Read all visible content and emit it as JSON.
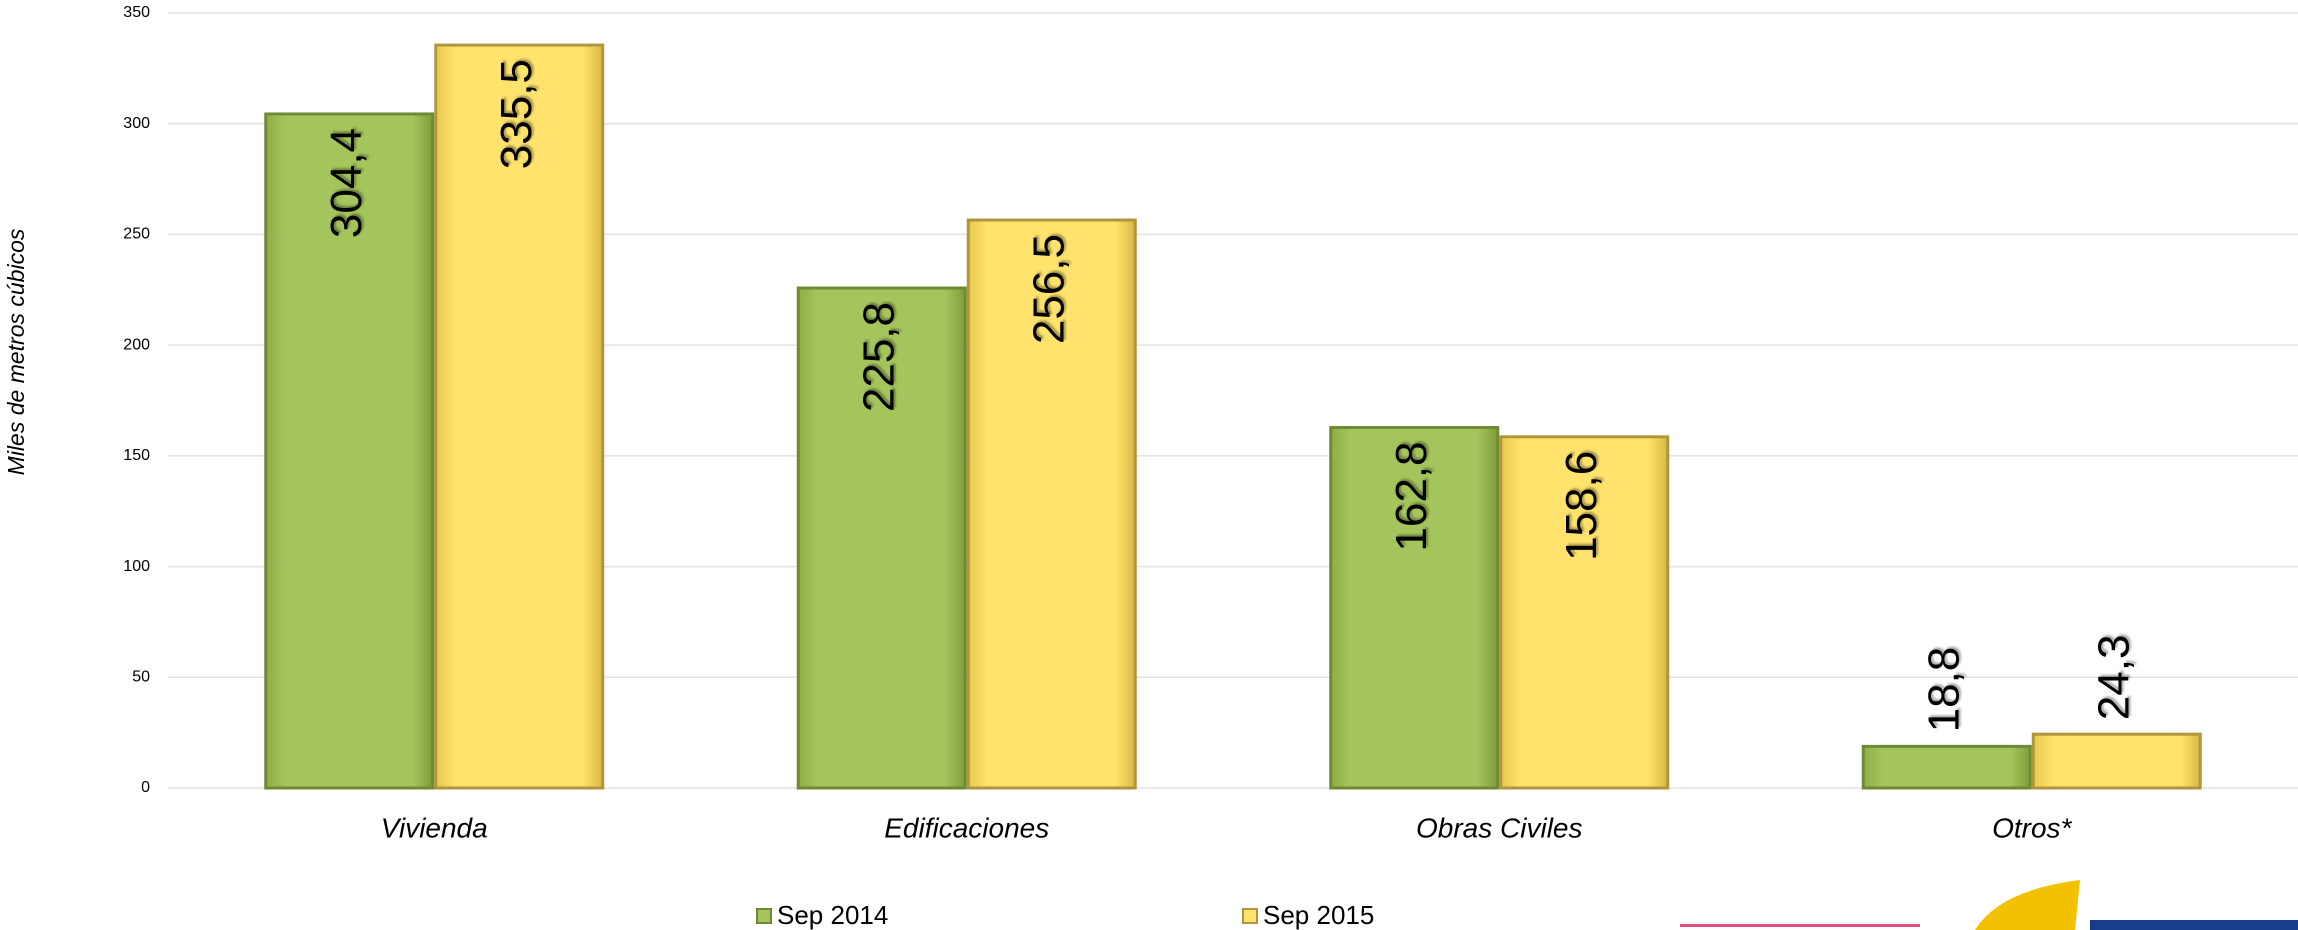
{
  "chart_data": {
    "type": "bar",
    "y_axis_label": "Miles de metros cúbicos",
    "categories": [
      "Vivienda",
      "Edificaciones",
      "Obras Civiles",
      "Otros*"
    ],
    "series": [
      {
        "name": "Sep 2014",
        "color": "#a5c45c",
        "values": [
          304.4,
          225.8,
          162.8,
          18.8
        ],
        "value_labels": [
          "304,4",
          "225,8",
          "162,8",
          "18,8"
        ]
      },
      {
        "name": "Sep 2015",
        "color": "#ffe36c",
        "values": [
          335.5,
          256.5,
          158.6,
          24.3
        ],
        "value_labels": [
          "335,5",
          "256,5",
          "158,6",
          "24,3"
        ]
      }
    ],
    "ylim": [
      0,
      350
    ],
    "yticks": [
      0,
      50,
      100,
      150,
      200,
      250,
      300,
      350
    ],
    "grid": true
  }
}
